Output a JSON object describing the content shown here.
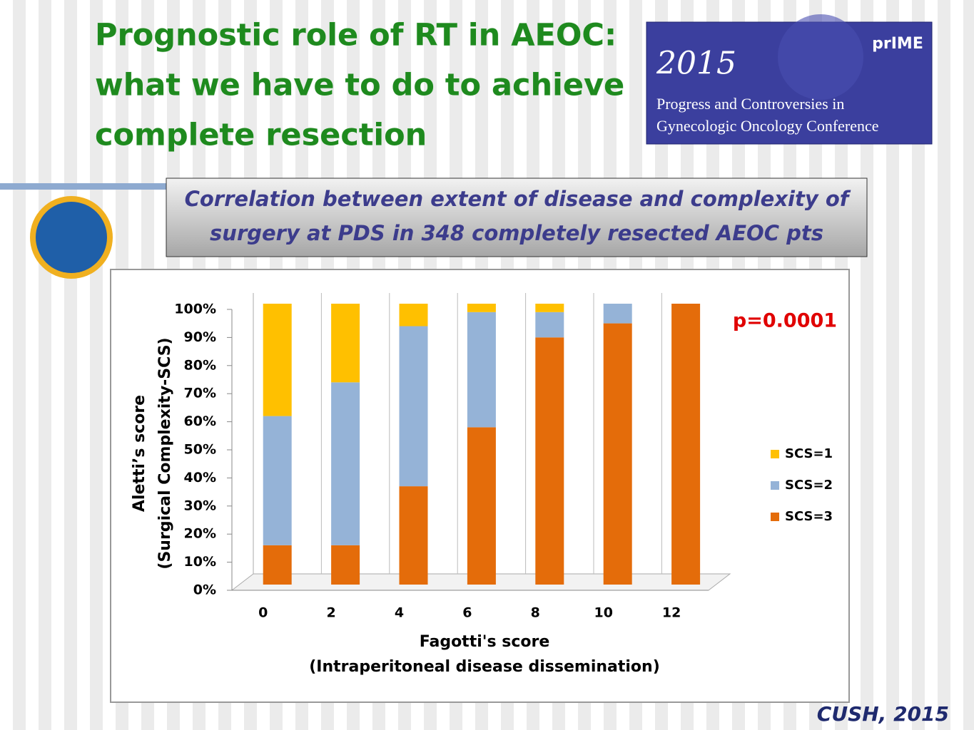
{
  "slide": {
    "title": [
      "Prognostic role of RT in AEOC:",
      "what we have to do to achieve",
      "complete resection"
    ],
    "conference": {
      "logo": "prIME",
      "year": "2015",
      "lines": [
        "Progress and Controversies in",
        "Gynecologic Oncology Conference"
      ]
    },
    "subtitle": [
      "Correlation between extent of disease and complexity of",
      "surgery at PDS in 348 completely resected AEOC pts"
    ],
    "footer": "CUSH, 2015"
  },
  "chart_data": {
    "type": "bar",
    "stacked": true,
    "ylabel": [
      "Aletti’s score",
      "(Surgical Complexity-SCS)"
    ],
    "xlabel": [
      "Fagotti's score",
      "(Intraperitoneal disease dissemination)"
    ],
    "annotation": "p=0.0001",
    "categories": [
      "0",
      "2",
      "4",
      "6",
      "8",
      "10",
      "12"
    ],
    "series": [
      {
        "name": "SCS=1",
        "color": "#ffc000",
        "values": [
          40,
          28,
          8,
          3,
          3,
          0,
          0
        ]
      },
      {
        "name": "SCS=2",
        "color": "#95b3d7",
        "values": [
          46,
          58,
          57,
          41,
          9,
          7,
          0
        ]
      },
      {
        "name": "SCS=3",
        "color": "#e46c0a",
        "values": [
          14,
          14,
          35,
          56,
          88,
          93,
          100
        ]
      }
    ],
    "ylim": [
      0,
      100
    ],
    "yticks": [
      {
        "value": 0,
        "label": "0%"
      },
      {
        "value": 10,
        "label": "10%"
      },
      {
        "value": 20,
        "label": "20%"
      },
      {
        "value": 30,
        "label": "30%"
      },
      {
        "value": 40,
        "label": "40%"
      },
      {
        "value": 50,
        "label": "50%"
      },
      {
        "value": 60,
        "label": "60%"
      },
      {
        "value": 70,
        "label": "70%"
      },
      {
        "value": 80,
        "label": "80%"
      },
      {
        "value": 90,
        "label": "90%"
      },
      {
        "value": 100,
        "label": "100%"
      }
    ],
    "grid": false,
    "legend": "right"
  }
}
